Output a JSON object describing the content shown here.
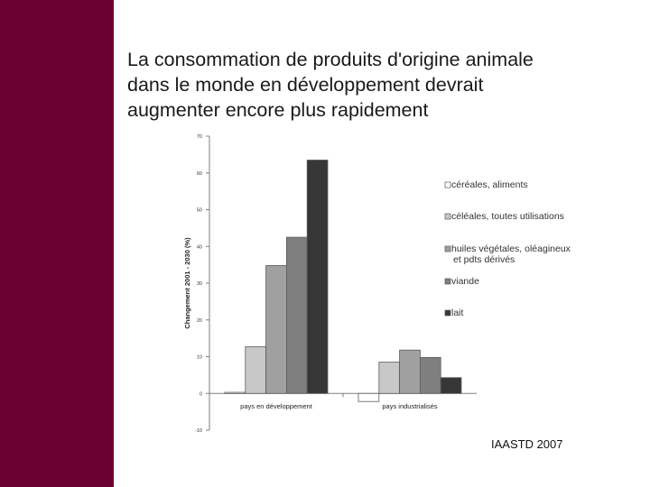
{
  "title": {
    "lines": [
      "La consommation de produits d'origine animale",
      "dans le monde en développement devrait",
      "augmenter encore plus rapidement"
    ]
  },
  "source": "IAASTD 2007",
  "chart_data": {
    "type": "bar",
    "title": "",
    "xlabel": "",
    "ylabel": "Changement 2001 - 2030 (%)",
    "ylim": [
      -10,
      70
    ],
    "yticks": [
      -10,
      0,
      10,
      20,
      30,
      40,
      50,
      60,
      70
    ],
    "grid": false,
    "legend_position": "right",
    "categories": [
      "pays en développement",
      "pays industrialisés"
    ],
    "series": [
      {
        "name": "céréales, aliments",
        "values": [
          0.3,
          -2.2
        ],
        "color": "#ffffff"
      },
      {
        "name": "céléales, toutes utilisations",
        "values": [
          12.7,
          8.5
        ],
        "color": "#c8c8c8"
      },
      {
        "name": "huiles végétales, oléagineux et pdts dérivés",
        "values": [
          34.8,
          11.8
        ],
        "color": "#a0a0a0"
      },
      {
        "name": "viande",
        "values": [
          42.5,
          9.8
        ],
        "color": "#7f7f7f"
      },
      {
        "name": "lait",
        "values": [
          63.5,
          4.3
        ],
        "color": "#363636"
      }
    ]
  }
}
